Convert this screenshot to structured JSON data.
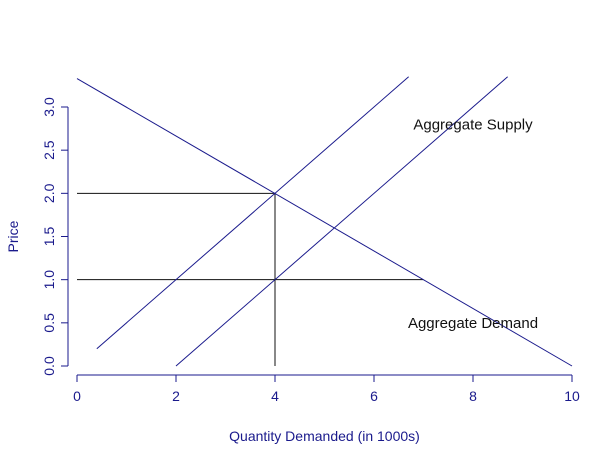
{
  "chart_data": {
    "type": "line",
    "xlabel": "Quantity Demanded (in 1000s)",
    "ylabel": "Price",
    "xlim": [
      0,
      10
    ],
    "ylim": [
      0,
      3
    ],
    "xticks": [
      0,
      2,
      4,
      6,
      8,
      10
    ],
    "xtick_labels": [
      "0",
      "2",
      "4",
      "6",
      "8",
      "10"
    ],
    "yticks": [
      0,
      0.5,
      1,
      1.5,
      2,
      2.5,
      3
    ],
    "ytick_labels": [
      "0.0",
      "0.5",
      "1.0",
      "1.5",
      "2.0",
      "2.5",
      "3.0"
    ],
    "series": [
      {
        "x": [
          0,
          10
        ],
        "y": [
          3.33,
          0.0
        ],
        "color": "#1a1a8c"
      },
      {
        "x": [
          0.4,
          6.7
        ],
        "y": [
          0.2,
          3.35
        ],
        "color": "#1a1a8c"
      },
      {
        "x": [
          2.0,
          8.7
        ],
        "y": [
          0.0,
          3.35
        ],
        "color": "#1a1a8c"
      }
    ],
    "reference_lines": [
      {
        "x": [
          0,
          4
        ],
        "y": [
          2,
          2
        ],
        "color": "#111111"
      },
      {
        "x": [
          0,
          7
        ],
        "y": [
          1,
          1
        ],
        "color": "#111111"
      },
      {
        "x": [
          4,
          4
        ],
        "y": [
          0,
          2
        ],
        "color": "#111111"
      }
    ],
    "annotations": [
      {
        "text": "Aggregate Supply",
        "x": 8,
        "y": 2.8
      },
      {
        "text": "Aggregate Demand",
        "x": 8,
        "y": 0.5
      }
    ],
    "colors": {
      "axis": "#1a1a8c",
      "lines": "#1a1a8c",
      "reference": "#111111",
      "annotation": "#111111"
    }
  }
}
